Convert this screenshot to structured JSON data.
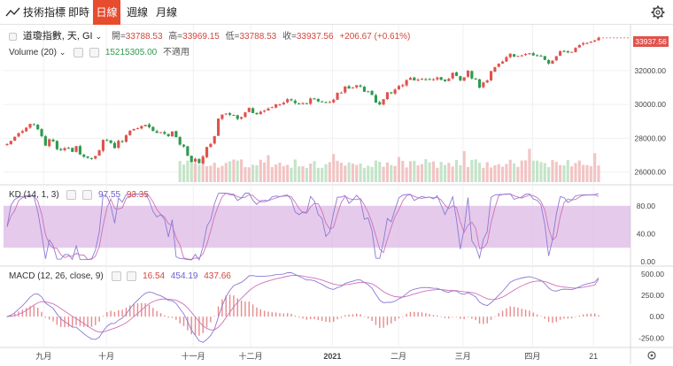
{
  "toolbar": {
    "title": "技術指標",
    "tabs": [
      {
        "label": "即時",
        "active": false
      },
      {
        "label": "日線",
        "active": true
      },
      {
        "label": "週線",
        "active": false
      },
      {
        "label": "月線",
        "active": false
      }
    ],
    "settings_icon": "gear-icon",
    "accent": "#e74c2f"
  },
  "price_legend": {
    "symbol": "道瓊指數, 天, GI",
    "open_label": "開=",
    "open": "33788.53",
    "high_label": "高=",
    "high": "33969.15",
    "low_label": "低=",
    "low": "33788.53",
    "close_label": "收=",
    "close": "33937.56",
    "change": "+206.67 (+0.61%)"
  },
  "volume_legend": {
    "label": "Volume (20)",
    "value": "15215305.00",
    "extra": "不適用"
  },
  "kd_legend": {
    "label": "KD (14, 1, 3)",
    "k": "97.55",
    "d": "93.35"
  },
  "macd_legend": {
    "label": "MACD (12, 26, close, 9)",
    "hist": "16.54",
    "macd": "454.19",
    "signal": "437.66"
  },
  "last_price_tag": "33937.56",
  "colors": {
    "up": "#e0524d",
    "down": "#2e9a4e",
    "k_line": "#8a7ad6",
    "d_line": "#d070b8",
    "kd_band": "#dcb8e4",
    "macd_line": "#8a7ad6",
    "signal_line": "#d070b8",
    "hist": "#e98a8a",
    "volume_up": "#f2c4c4",
    "volume_down": "#c4e4c8"
  },
  "chart_data": [
    {
      "type": "candlestick",
      "title": "道瓊指數",
      "x_labels": [
        "九月",
        "十月",
        "十一月",
        "十二月",
        "2021",
        "二月",
        "三月",
        "四月",
        "21"
      ],
      "y_ticks": [
        26000.0,
        28000.0,
        30000.0,
        32000.0
      ],
      "ylim": [
        25400,
        34300
      ],
      "series": [
        {
          "name": "Price",
          "values": [
            27652,
            27842,
            28085,
            28300,
            28420,
            28623,
            28845,
            28810,
            28530,
            28120,
            27560,
            27940,
            27820,
            27350,
            27300,
            27410,
            27410,
            27190,
            27530,
            27040,
            26900,
            26840,
            26800,
            26950,
            27280,
            27900,
            27880,
            27720,
            27410,
            27850,
            27780,
            28170,
            28440,
            28550,
            28590,
            28720,
            28790,
            28650,
            28430,
            28310,
            28360,
            28260,
            28120,
            28400,
            28060,
            27620,
            27510,
            26960,
            26600,
            26780,
            26530,
            26900,
            27480,
            27660,
            28120,
            29160,
            29400,
            29460,
            29390,
            29380,
            29140,
            29250,
            29530,
            29800,
            29490,
            29420,
            29570,
            29640,
            29760,
            29840,
            30010,
            30000,
            30100,
            30310,
            30240,
            30080,
            30040,
            30080,
            30070,
            30350,
            30300,
            30180,
            30170,
            30110,
            30140,
            30280,
            30690,
            30700,
            31070,
            30940,
            31000,
            31140,
            31060,
            30750,
            30770,
            30560,
            30110,
            30000,
            30310,
            30720,
            30660,
            30880,
            31090,
            31150,
            31440,
            31570,
            31420,
            31470,
            31520,
            31490,
            31500,
            31490,
            31590,
            31450,
            31380,
            31520,
            31870,
            31690,
            31430,
            31610,
            32000,
            31540,
            31480,
            31000,
            31300,
            31420,
            31970,
            32200,
            32420,
            32540,
            32800,
            33000,
            32830,
            32870,
            32900,
            32990,
            33030,
            32900,
            32880,
            32870,
            32640,
            32420,
            32590,
            32860,
            33150,
            33140,
            33080,
            33110,
            33350,
            33520,
            33630,
            33650,
            33720,
            33790,
            33940
          ]
        }
      ],
      "ylabel": ""
    },
    {
      "type": "bar",
      "title": "Volume (20)",
      "series": [
        {
          "name": "Volume",
          "values": [
            15215305
          ]
        }
      ]
    },
    {
      "type": "line",
      "title": "KD (14, 1, 3)",
      "y_ticks": [
        0.0,
        40.0,
        80.0
      ],
      "ylim": [
        -5,
        105
      ],
      "band": [
        20,
        80
      ],
      "series": [
        {
          "name": "K",
          "last": 97.55
        },
        {
          "name": "D",
          "last": 93.35
        }
      ]
    },
    {
      "type": "line",
      "title": "MACD (12, 26, close, 9)",
      "y_ticks": [
        -250.0,
        0.0,
        250.0,
        500.0
      ],
      "ylim": [
        -330,
        560
      ],
      "series": [
        {
          "name": "Histogram",
          "last": 16.54
        },
        {
          "name": "MACD",
          "last": 454.19
        },
        {
          "name": "Signal",
          "last": 437.66
        }
      ]
    }
  ]
}
